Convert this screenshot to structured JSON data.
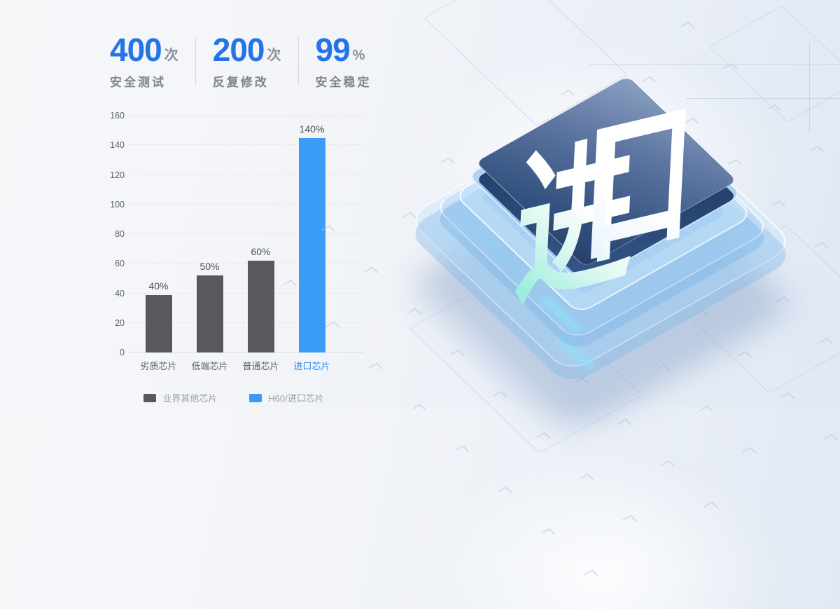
{
  "stats": {
    "items": [
      {
        "value": "400",
        "unit": "次",
        "label": "安全测试"
      },
      {
        "value": "200",
        "unit": "次",
        "label": "反复修改"
      },
      {
        "value": "99",
        "unit": "%",
        "label": "安全稳定"
      }
    ]
  },
  "chart_data": {
    "type": "bar",
    "categories": [
      "劣质芯片",
      "低端芯片",
      "普通芯片",
      "进口芯片"
    ],
    "values": [
      40,
      50,
      60,
      140
    ],
    "drawn_values": [
      39,
      52,
      62,
      145
    ],
    "value_labels": [
      "40%",
      "50%",
      "60%",
      "140%"
    ],
    "bar_colors": [
      "#58595c",
      "#58595c",
      "#58595c",
      "#3b9cf6"
    ],
    "category_colors": [
      "#5a5f66",
      "#5a5f66",
      "#5a5f66",
      "#2e8bf0"
    ],
    "ylim": [
      0,
      160
    ],
    "y_ticks": [
      160,
      140,
      120,
      100,
      80,
      60,
      40,
      20,
      0
    ],
    "grid": "horizontal-dashed",
    "legend_position": "bottom",
    "legend": [
      {
        "label": "业界其他芯片",
        "color": "#58595c"
      },
      {
        "label": "H60/进口芯片",
        "color": "#3b9cf6"
      }
    ]
  },
  "illustration": {
    "chip_label": "进口"
  },
  "colors": {
    "accent_blue": "#2474e8",
    "bar_gray": "#58595c",
    "bar_blue": "#3b9cf6",
    "highlight_category": "#2e8bf0",
    "legend_text": "#9aa0a8"
  }
}
